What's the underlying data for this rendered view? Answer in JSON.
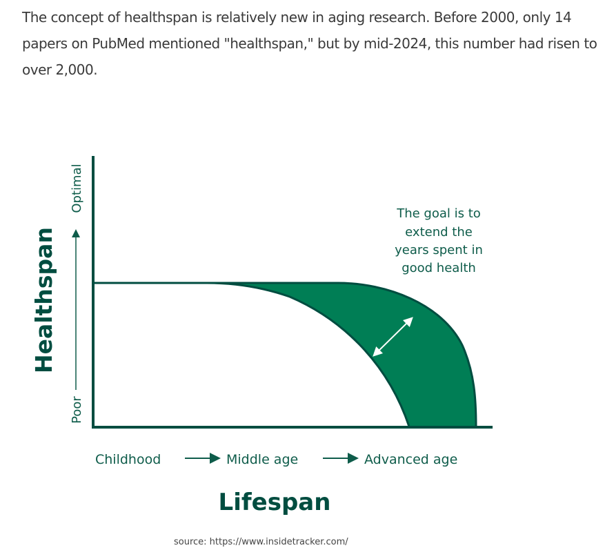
{
  "intro_text": "The concept of healthspan is relatively new in aging research. Before 2000, only 14 papers on PubMed mentioned \"healthspan,\" but by mid-2024, this number had risen to over 2,000.",
  "diagram": {
    "y_axis_title": "Healthspan",
    "y_low_label": "Poor",
    "y_high_label": "Optimal",
    "x_axis_title": "Lifespan",
    "x_stages": [
      "Childhood",
      "Middle age",
      "Advanced age"
    ],
    "annotation_lines": [
      "The goal is to",
      "extend the",
      "years spent in",
      "good health"
    ],
    "colors": {
      "brand_dark": "#004d40",
      "fill_green": "#007e55",
      "label_teal": "#0e5c4a"
    }
  },
  "source_text": "source: https://www.insidetracker.com/"
}
